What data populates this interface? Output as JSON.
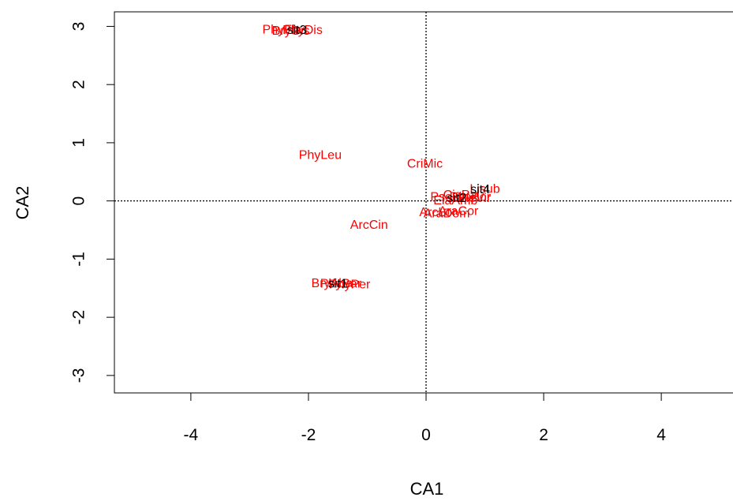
{
  "chart_data": {
    "type": "scatter",
    "xlabel": "CA1",
    "ylabel": "CA2",
    "xlim": [
      -5.3,
      5.3
    ],
    "ylim": [
      -3.3,
      3.25
    ],
    "x_ticks": [
      -4,
      -2,
      0,
      2,
      4
    ],
    "y_ticks": [
      -3,
      -2,
      -1,
      0,
      1,
      2,
      3
    ],
    "reference_lines": {
      "x": 0,
      "y": 0,
      "style": "dotted"
    },
    "series": [
      {
        "name": "sites",
        "color": "#000000",
        "points": [
          {
            "label": "sit3",
            "x": -2.2,
            "y": 2.93
          },
          {
            "label": "sit4",
            "x": 0.92,
            "y": 0.19
          },
          {
            "label": "sit2",
            "x": 0.52,
            "y": 0.04
          },
          {
            "label": "sit1",
            "x": -1.5,
            "y": -1.43
          }
        ]
      },
      {
        "name": "species",
        "color": "#ff0000",
        "points": [
          {
            "label": "PhyLeu",
            "x": -1.8,
            "y": 0.78
          },
          {
            "label": "CriMic",
            "x": -0.02,
            "y": 0.63
          },
          {
            "label": "ArcCin",
            "x": -0.97,
            "y": -0.42
          },
          {
            "label": "Lisub",
            "x": 1.0,
            "y": 0.2
          },
          {
            "label": "ArcLor",
            "x": 0.2,
            "y": -0.2
          },
          {
            "label": "AraCor",
            "x": 0.55,
            "y": -0.18
          },
          {
            "label": "AraDom",
            "x": 0.35,
            "y": -0.22
          },
          {
            "label": "PseLin",
            "x": 0.4,
            "y": 0.06
          },
          {
            "label": "PseBor",
            "x": 0.75,
            "y": 0.06
          },
          {
            "label": "CisPal",
            "x": 0.6,
            "y": 0.1
          },
          {
            "label": "ElaAmb",
            "x": 0.5,
            "y": 0.0
          },
          {
            "label": "EleVir",
            "x": 0.82,
            "y": 0.04
          },
          {
            "label": "PhyFla",
            "x": -2.45,
            "y": 2.94
          },
          {
            "label": "PhyDis",
            "x": -2.1,
            "y": 2.93
          },
          {
            "label": "BryGis",
            "x": -2.3,
            "y": 2.92
          },
          {
            "label": "BryAba",
            "x": -1.6,
            "y": -1.42
          },
          {
            "label": "PhyPer",
            "x": -1.3,
            "y": -1.44
          },
          {
            "label": "PhyBar",
            "x": -1.45,
            "y": -1.43
          }
        ]
      }
    ]
  }
}
